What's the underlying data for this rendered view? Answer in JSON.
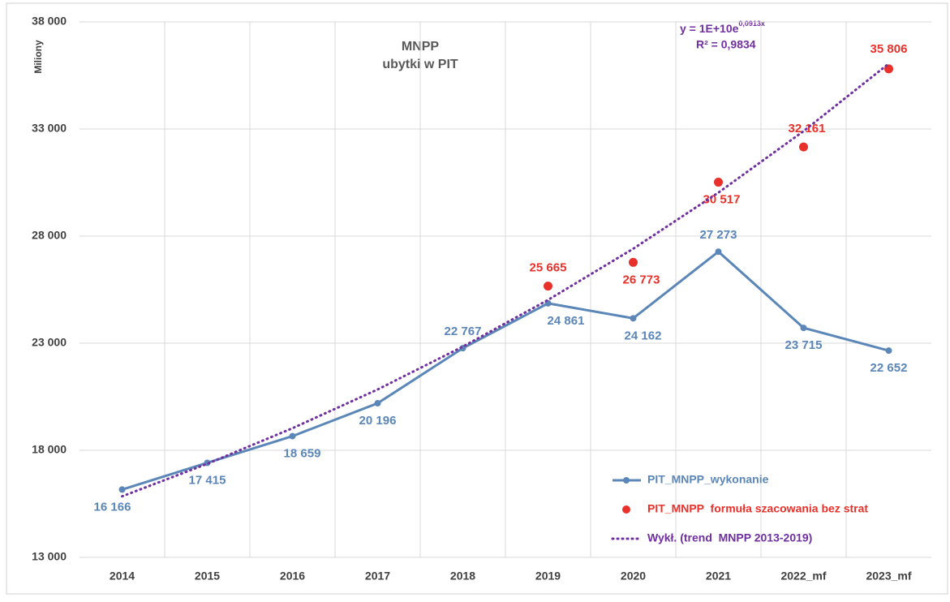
{
  "chart_data": {
    "type": "line",
    "title": "MNPP",
    "subtitle": "ubytki w PIT",
    "y_label": "Miliony",
    "equation": {
      "base": "y = 1E+10e",
      "exponent": "0,0913x"
    },
    "r_squared": "R² = 0,9834",
    "categories": [
      "2014",
      "2015",
      "2016",
      "2017",
      "2018",
      "2019",
      "2020",
      "2021",
      "2022_mf",
      "2023_mf"
    ],
    "series": [
      {
        "name": "PIT_MNPP_wykonanie",
        "color": "#5b86b8",
        "style": "line-markers",
        "values": [
          16166,
          17415,
          18659,
          20196,
          22767,
          24861,
          24162,
          27273,
          23715,
          22652
        ],
        "value_labels": [
          "16 166",
          "17 415",
          "18 659",
          "20 196",
          "22 767",
          "24 861",
          "24 162",
          "27 273",
          "23 715",
          "22 652"
        ]
      },
      {
        "name": "PIT_MNPP  formuła szacowania bez strat",
        "color": "#e8312a",
        "style": "markers",
        "values": [
          null,
          null,
          null,
          null,
          null,
          25665,
          26773,
          30517,
          32161,
          35806
        ],
        "value_labels": [
          null,
          null,
          null,
          null,
          null,
          "25 665",
          "26 773",
          "30 517",
          "32 161",
          "35 806"
        ]
      },
      {
        "name": "Wykł. (trend  MNPP 2013-2019)",
        "color": "#7030a0",
        "style": "dotted",
        "values": [
          15850,
          17370,
          19030,
          20840,
          22840,
          25020,
          27410,
          30030,
          32900,
          36050
        ]
      }
    ],
    "ylim": [
      13000,
      38000
    ],
    "yticks": [
      {
        "value": 13000,
        "label": "13 000"
      },
      {
        "value": 18000,
        "label": "18 000"
      },
      {
        "value": 23000,
        "label": "23 000"
      },
      {
        "value": 28000,
        "label": "28 000"
      },
      {
        "value": 33000,
        "label": "33 000"
      },
      {
        "value": 38000,
        "label": "38 000"
      }
    ],
    "grid": true,
    "legend": "lower right"
  }
}
